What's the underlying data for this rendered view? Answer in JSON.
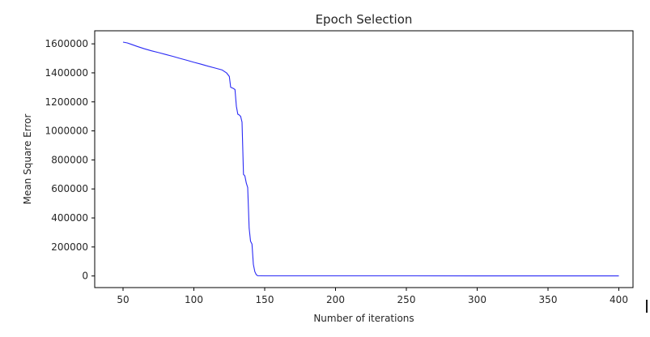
{
  "chart_data": {
    "type": "line",
    "title": "Epoch Selection",
    "xlabel": "Number of iterations",
    "ylabel": "Mean Square Error",
    "xlim": [
      30,
      410
    ],
    "ylim": [
      -80000,
      1690000
    ],
    "x_ticks": [
      50,
      100,
      150,
      200,
      250,
      300,
      350,
      400
    ],
    "y_ticks": [
      0,
      200000,
      400000,
      600000,
      800000,
      1000000,
      1200000,
      1400000,
      1600000
    ],
    "grid": false,
    "legend": "none",
    "series": [
      {
        "color": "#2a2af5",
        "points": [
          [
            50,
            1612000
          ],
          [
            53,
            1606000
          ],
          [
            56,
            1596000
          ],
          [
            60,
            1582000
          ],
          [
            65,
            1566000
          ],
          [
            70,
            1552000
          ],
          [
            75,
            1540000
          ],
          [
            80,
            1527000
          ],
          [
            85,
            1514000
          ],
          [
            90,
            1500000
          ],
          [
            95,
            1487000
          ],
          [
            100,
            1473000
          ],
          [
            105,
            1460000
          ],
          [
            110,
            1446000
          ],
          [
            115,
            1433000
          ],
          [
            120,
            1420000
          ],
          [
            123,
            1400000
          ],
          [
            125,
            1375000
          ],
          [
            126,
            1300000
          ],
          [
            128,
            1292000
          ],
          [
            129,
            1285000
          ],
          [
            130,
            1170000
          ],
          [
            131,
            1115000
          ],
          [
            132,
            1110000
          ],
          [
            133,
            1100000
          ],
          [
            134,
            1060000
          ],
          [
            135,
            700000
          ],
          [
            136,
            690000
          ],
          [
            137,
            640000
          ],
          [
            138,
            610000
          ],
          [
            139,
            330000
          ],
          [
            140,
            240000
          ],
          [
            141,
            220000
          ],
          [
            142,
            80000
          ],
          [
            143,
            30000
          ],
          [
            144,
            10000
          ],
          [
            145,
            2000
          ],
          [
            150,
            1000
          ],
          [
            200,
            800
          ],
          [
            250,
            700
          ],
          [
            300,
            600
          ],
          [
            350,
            500
          ],
          [
            400,
            500
          ]
        ]
      }
    ]
  }
}
